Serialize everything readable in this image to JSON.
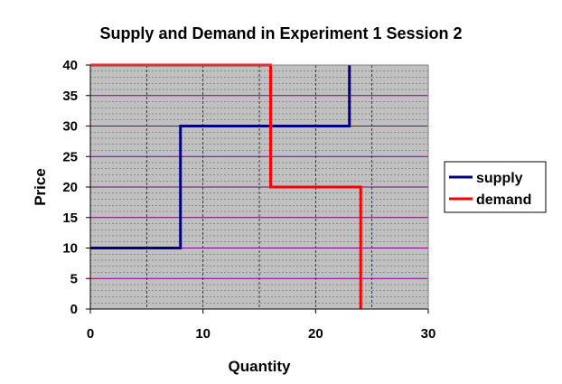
{
  "chart_data": {
    "type": "line",
    "line_style": "step",
    "title": "Supply and Demand in Experiment 1 Session 2",
    "xlabel": "Quantity",
    "ylabel": "Price",
    "xlim": [
      0,
      30
    ],
    "ylim": [
      0,
      40
    ],
    "x_ticks": [
      0,
      10,
      20,
      30
    ],
    "y_ticks": [
      0,
      5,
      10,
      15,
      20,
      25,
      30,
      35,
      40
    ],
    "grid": true,
    "legend_position": "right",
    "plot_background": "#C0C0C0",
    "series": [
      {
        "name": "supply",
        "color": "#000080",
        "points": [
          [
            0,
            10
          ],
          [
            8,
            10
          ],
          [
            8,
            30
          ],
          [
            23,
            30
          ],
          [
            23,
            40
          ]
        ]
      },
      {
        "name": "demand",
        "color": "#FF0000",
        "points": [
          [
            0,
            40
          ],
          [
            16,
            40
          ],
          [
            16,
            20
          ],
          [
            24,
            20
          ],
          [
            24,
            0
          ]
        ]
      }
    ]
  }
}
